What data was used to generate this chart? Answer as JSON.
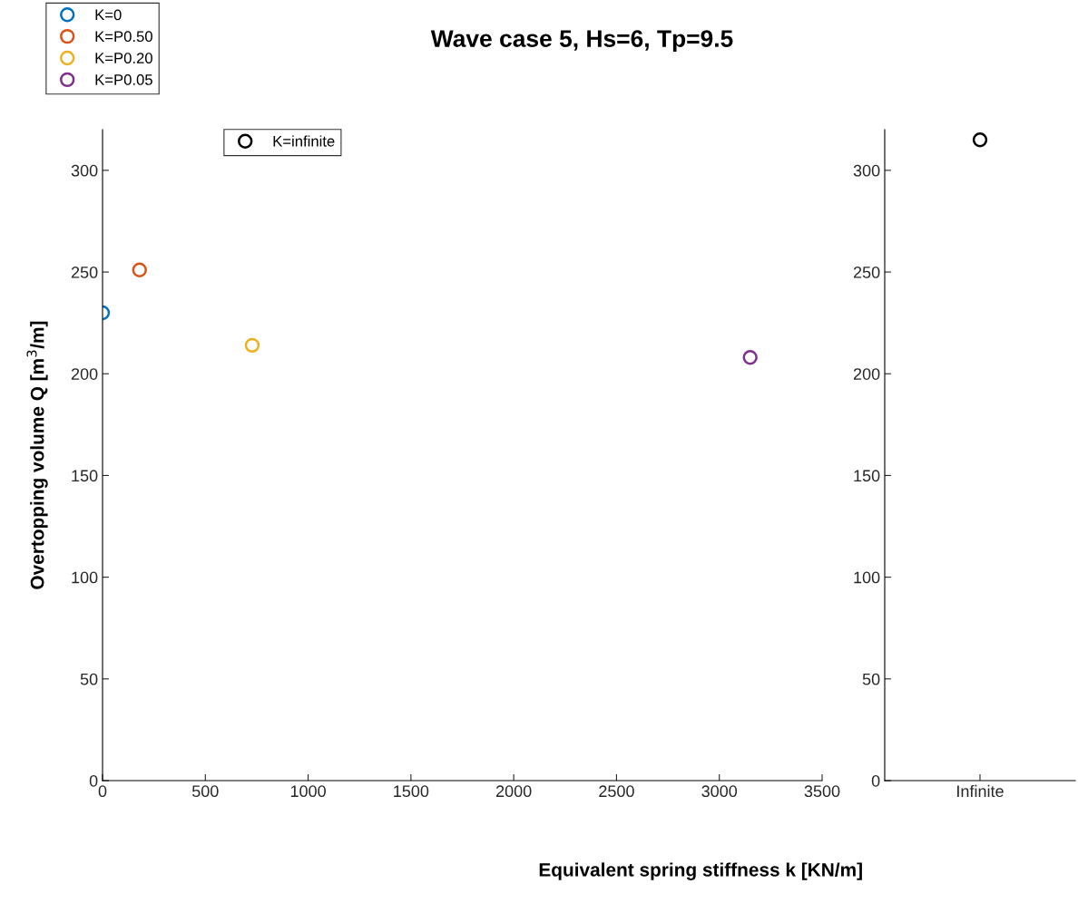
{
  "chart_data": [
    {
      "type": "scatter",
      "title": "Wave case 5, Hs=6, Tp=9.5",
      "xlabel": "Equivalent spring stiffness k [KN/m]",
      "ylabel": "Overtopping volume Q [m$^{3}$/m]",
      "xlim": [
        0,
        3500
      ],
      "xticks": [
        0,
        500,
        1000,
        1500,
        2000,
        2500,
        3000,
        3500
      ],
      "ylim": [
        0,
        320
      ],
      "yticks": [
        0,
        50,
        100,
        150,
        200,
        250,
        300
      ],
      "marker": "circle",
      "legend": "top left",
      "grid": false,
      "series": [
        {
          "name": "K=0",
          "color": "#0072bd",
          "x": [
            0
          ],
          "values": [
            230
          ]
        },
        {
          "name": "K=P0.50",
          "color": "#d95319",
          "x": [
            180
          ],
          "values": [
            251
          ]
        },
        {
          "name": "K=P0.20",
          "color": "#edb120",
          "x": [
            728
          ],
          "values": [
            214
          ]
        },
        {
          "name": "K=P0.05",
          "color": "#7e2f8e",
          "x": [
            3150
          ],
          "values": [
            208
          ]
        }
      ]
    },
    {
      "type": "scatter",
      "categories": [
        "Infinite"
      ],
      "ylim": [
        0,
        320
      ],
      "yticks": [
        0,
        50,
        100,
        150,
        200,
        250,
        300
      ],
      "marker": "circle",
      "legend": "top left",
      "grid": false,
      "series": [
        {
          "name": "K=infinite",
          "color": "#000000",
          "values": [
            315
          ]
        }
      ]
    }
  ]
}
